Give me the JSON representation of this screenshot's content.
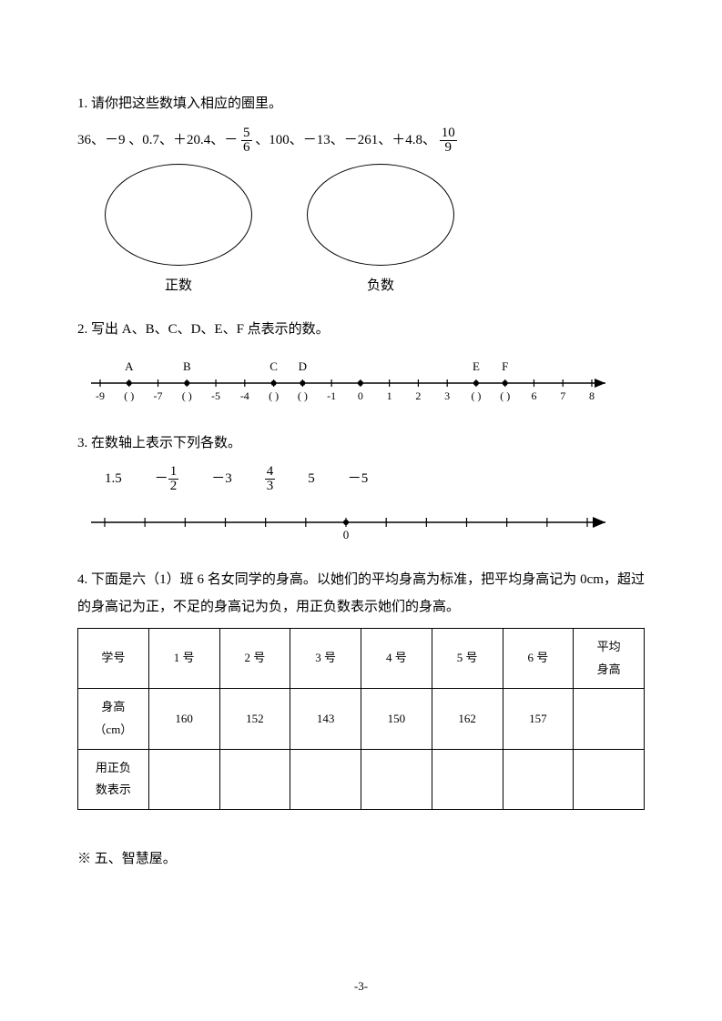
{
  "q1": {
    "prompt": "1. 请你把这些数填入相应的圈里。",
    "numbers_prefix": "36、－9 、0.7、＋20.4、－",
    "frac1_num": "5",
    "frac1_den": "6",
    "numbers_mid": " 、100、－13、－261、＋4.8、",
    "frac2_num": "10",
    "frac2_den": "9",
    "label_pos": "正数",
    "label_neg": "负数"
  },
  "q2": {
    "prompt": "2. 写出 A、B、C、D、E、F 点表示的数。",
    "points": [
      "A",
      "B",
      "C",
      "D",
      "E",
      "F"
    ],
    "ticks": [
      -9,
      -8,
      -7,
      -6,
      -5,
      -4,
      -3,
      -2,
      -1,
      0,
      1,
      2,
      3,
      4,
      5,
      6,
      7,
      8
    ],
    "label_map": {
      "-9": "-9",
      "-8": "(  )",
      "-7": "-7",
      "-6": "(  )",
      "-5": "-5",
      "-4": "-4",
      "-3": "(  )",
      "-2": "(  )",
      "-1": "-1",
      "0": "0",
      "1": "1",
      "2": "2",
      "3": "3",
      "4": "(  )",
      "5": "(  )",
      "6": "6",
      "7": "7",
      "8": "8"
    },
    "point_at": {
      "A": -8,
      "B": -6,
      "C": -3,
      "D": -2,
      "E": 4,
      "F": 5
    }
  },
  "q3": {
    "prompt": "3. 在数轴上表示下列各数。",
    "values": {
      "v1": "1.5",
      "v2_neg": "－",
      "v2_num": "1",
      "v2_den": "2",
      "v3": "－3",
      "v4_num": "4",
      "v4_den": "3",
      "v5": "5",
      "v6": "－5"
    }
  },
  "q4": {
    "prompt": "4. 下面是六（1）班 6 名女同学的身高。以她们的平均身高为标准，把平均身高记为 0cm，超过的身高记为正，不足的身高记为负，用正负数表示她们的身高。",
    "headers": [
      "学号",
      "1 号",
      "2 号",
      "3 号",
      "4 号",
      "5 号",
      "6 号",
      "平均\n身高"
    ],
    "row_h_label": "身高\n（cm）",
    "row_h": [
      "160",
      "152",
      "143",
      "150",
      "162",
      "157",
      ""
    ],
    "row_s_label": "用正负\n数表示",
    "row_s": [
      "",
      "",
      "",
      "",
      "",
      "",
      ""
    ]
  },
  "section5": "※ 五、智慧屋。",
  "page_num": "-3-"
}
